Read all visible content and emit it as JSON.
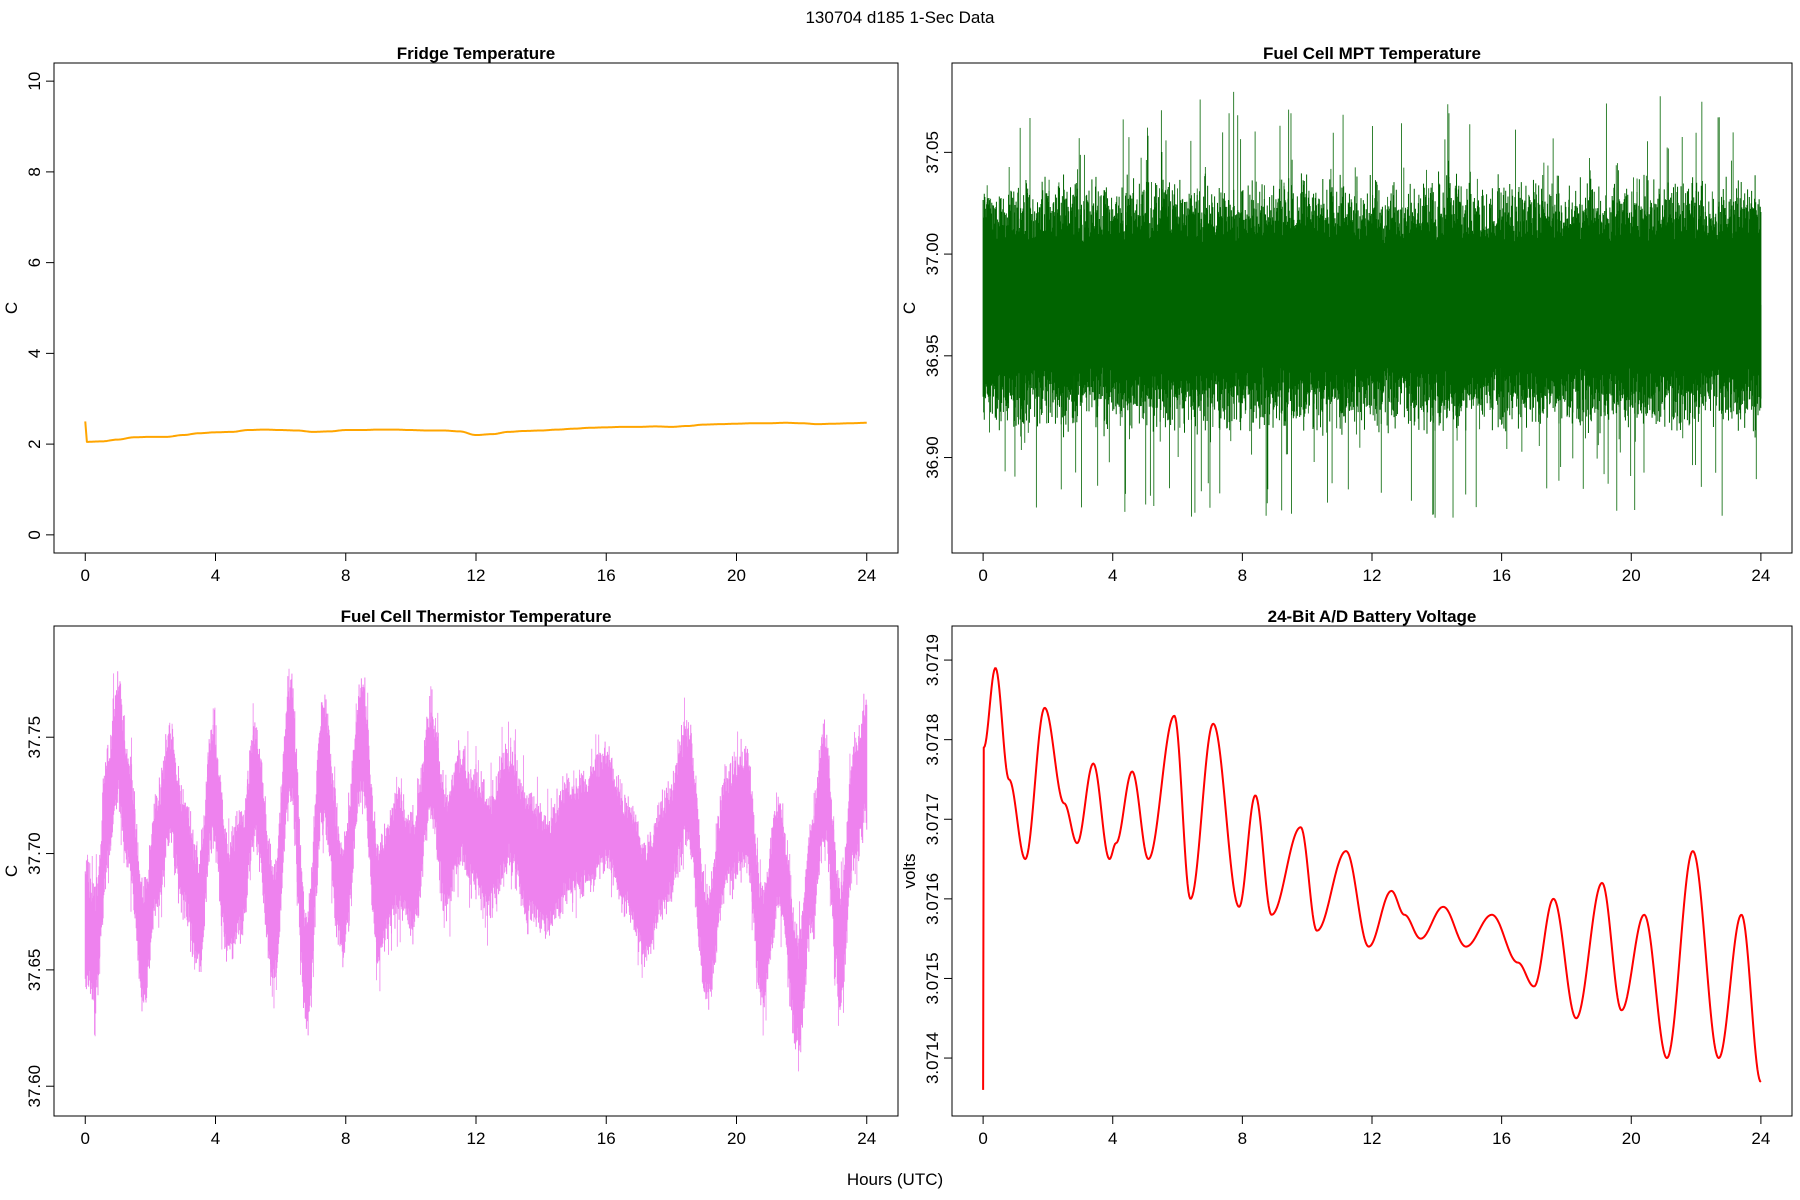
{
  "figure": {
    "title": "130704   d185   1-Sec Data",
    "xlabel": "Hours (UTC)"
  },
  "chart_data": [
    {
      "type": "line",
      "title": "Fridge Temperature",
      "ylabel": "C",
      "xlim": [
        0,
        24
      ],
      "ylim": [
        0,
        10
      ],
      "xticks": [
        "0",
        "4",
        "8",
        "12",
        "16",
        "20",
        "24"
      ],
      "yticks": [
        "0",
        "2",
        "4",
        "6",
        "8",
        "10"
      ],
      "color": "#FFA500",
      "band": false,
      "x": [
        0,
        0.05,
        0.5,
        1,
        1.5,
        2,
        2.5,
        3,
        3.5,
        4,
        4.5,
        5,
        5.5,
        6,
        6.5,
        7,
        7.5,
        8,
        8.5,
        9,
        9.5,
        10,
        10.5,
        11,
        11.5,
        12,
        12.5,
        13,
        13.5,
        14,
        14.5,
        15,
        15.5,
        16,
        16.5,
        17,
        17.5,
        18,
        18.5,
        19,
        19.5,
        20,
        20.5,
        21,
        21.5,
        22,
        22.5,
        23,
        23.5,
        24
      ],
      "y": [
        2.5,
        2.05,
        2.06,
        2.1,
        2.15,
        2.16,
        2.16,
        2.2,
        2.24,
        2.26,
        2.27,
        2.31,
        2.32,
        2.31,
        2.3,
        2.27,
        2.28,
        2.31,
        2.31,
        2.32,
        2.32,
        2.31,
        2.3,
        2.3,
        2.28,
        2.2,
        2.22,
        2.27,
        2.29,
        2.3,
        2.32,
        2.34,
        2.36,
        2.37,
        2.38,
        2.38,
        2.39,
        2.38,
        2.4,
        2.43,
        2.44,
        2.45,
        2.46,
        2.46,
        2.47,
        2.46,
        2.44,
        2.45,
        2.46,
        2.47
      ]
    },
    {
      "type": "line",
      "title": "Fuel Cell MPT Temperature",
      "ylabel": "C",
      "xlim": [
        0,
        24
      ],
      "ylim": [
        36.862,
        37.085
      ],
      "xticks": [
        "0",
        "4",
        "8",
        "12",
        "16",
        "20",
        "24"
      ],
      "yticks": [
        "36.90",
        "36.95",
        "37.00",
        "37.05"
      ],
      "color": "#006400",
      "band": true,
      "x": [
        0,
        2,
        4,
        6,
        8,
        10,
        12,
        14,
        16,
        18,
        20,
        22,
        24
      ],
      "y": [
        36.975,
        36.975,
        36.975,
        36.975,
        36.975,
        36.975,
        36.975,
        36.975,
        36.975,
        36.975,
        36.975,
        36.975,
        36.975
      ],
      "band_core": 0.05,
      "band_spike": 0.105
    },
    {
      "type": "line",
      "title": "Fuel Cell Thermistor Temperature",
      "ylabel": "C",
      "xlim": [
        0,
        24
      ],
      "ylim": [
        37.595,
        37.79
      ],
      "xticks": [
        "0",
        "4",
        "8",
        "12",
        "16",
        "20",
        "24"
      ],
      "yticks": [
        "37.60",
        "37.65",
        "37.70",
        "37.75"
      ],
      "color": "#EE82EE",
      "band": true,
      "x": [
        0,
        0.3,
        0.7,
        1.0,
        1.3,
        1.8,
        2.2,
        2.6,
        3.0,
        3.5,
        3.9,
        4.4,
        4.8,
        5.2,
        5.8,
        6.3,
        6.8,
        7.3,
        7.9,
        8.5,
        9.0,
        9.6,
        10.1,
        10.6,
        11.1,
        11.5,
        11.9,
        12.4,
        13.0,
        13.6,
        14.2,
        14.8,
        15.4,
        16.0,
        16.6,
        17.2,
        17.8,
        18.5,
        19.1,
        19.7,
        20.3,
        20.8,
        21.3,
        21.9,
        22.3,
        22.7,
        23.2,
        23.6,
        24.0
      ],
      "y": [
        37.67,
        37.66,
        37.72,
        37.75,
        37.72,
        37.66,
        37.7,
        37.73,
        37.7,
        37.675,
        37.73,
        37.68,
        37.69,
        37.73,
        37.67,
        37.75,
        37.65,
        37.74,
        37.68,
        37.75,
        37.68,
        37.7,
        37.69,
        37.74,
        37.7,
        37.72,
        37.71,
        37.7,
        37.72,
        37.7,
        37.69,
        37.705,
        37.71,
        37.72,
        37.7,
        37.68,
        37.7,
        37.73,
        37.66,
        37.71,
        37.72,
        37.66,
        37.7,
        37.64,
        37.69,
        37.73,
        37.66,
        37.72,
        37.74
      ],
      "band_core": 0.024,
      "band_spike": 0.04
    },
    {
      "type": "line",
      "title": "24-Bit A/D Battery Voltage",
      "ylabel": "volts",
      "xlim": [
        0,
        24
      ],
      "ylim": [
        3.07135,
        3.07192
      ],
      "xticks": [
        "0",
        "4",
        "8",
        "12",
        "16",
        "20",
        "24"
      ],
      "yticks": [
        "3.0714",
        "3.0715",
        "3.0716",
        "3.0717",
        "3.0718",
        "3.0719"
      ],
      "color": "#FF0000",
      "band": false,
      "x": [
        0,
        0.02,
        0.38,
        0.8,
        1.3,
        1.9,
        2.5,
        2.9,
        3.4,
        3.9,
        4.1,
        4.6,
        5.1,
        5.9,
        6.4,
        7.1,
        7.9,
        8.4,
        8.9,
        9.8,
        10.3,
        11.2,
        11.9,
        12.6,
        13.0,
        13.5,
        14.2,
        14.9,
        15.7,
        16.5,
        17.0,
        17.6,
        18.3,
        19.1,
        19.7,
        20.4,
        21.1,
        21.9,
        22.7,
        23.4,
        24.0
      ],
      "y": [
        3.07136,
        3.07179,
        3.07189,
        3.07175,
        3.07165,
        3.07184,
        3.07172,
        3.07167,
        3.07177,
        3.07165,
        3.07167,
        3.07176,
        3.07165,
        3.07183,
        3.0716,
        3.07182,
        3.07159,
        3.07173,
        3.07158,
        3.07169,
        3.07156,
        3.07166,
        3.07154,
        3.07161,
        3.07158,
        3.07155,
        3.07159,
        3.07154,
        3.07158,
        3.07152,
        3.07149,
        3.0716,
        3.07145,
        3.07162,
        3.07146,
        3.07158,
        3.0714,
        3.07166,
        3.0714,
        3.07158,
        3.07137
      ]
    }
  ]
}
